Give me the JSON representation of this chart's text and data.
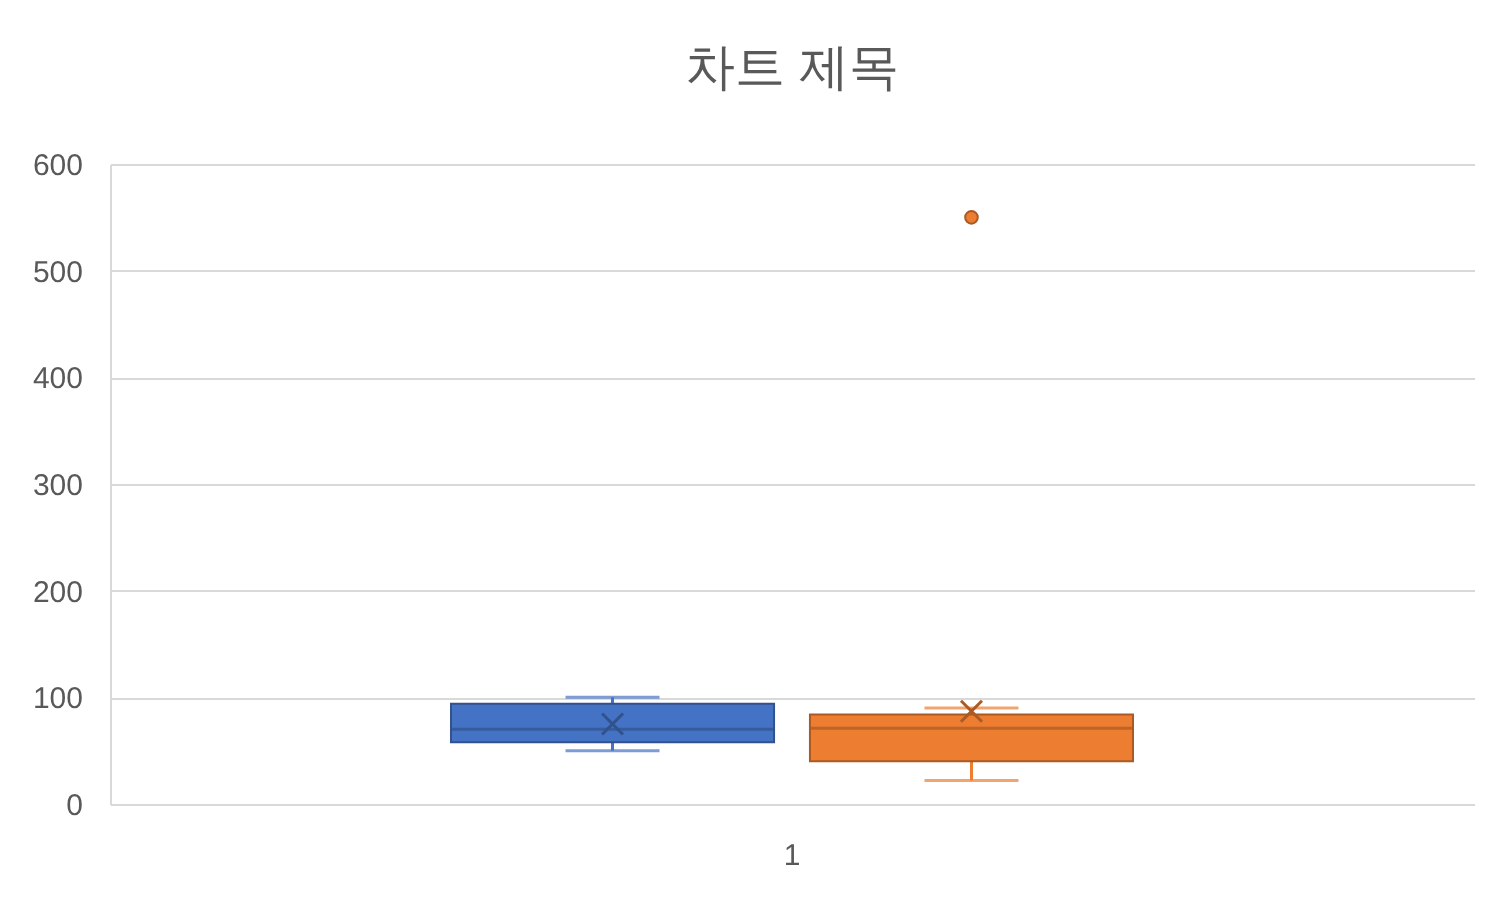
{
  "chart_data": {
    "type": "box",
    "title": "차트 제목",
    "categories": [
      "1"
    ],
    "series": [
      {
        "color": "#4472c4",
        "boxes": [
          {
            "low": 50,
            "q1": 58,
            "median": 70,
            "q3": 94,
            "high": 100,
            "mean": 75
          }
        ]
      },
      {
        "color": "#ed7d31",
        "boxes": [
          {
            "low": 22,
            "q1": 40,
            "median": 71,
            "q3": 84,
            "high": 90,
            "mean": 87,
            "outliers": [
              550
            ]
          }
        ]
      }
    ],
    "ylim": [
      0,
      600
    ],
    "yticks": [
      0,
      100,
      200,
      300,
      400,
      500,
      600
    ],
    "grid": "y"
  }
}
